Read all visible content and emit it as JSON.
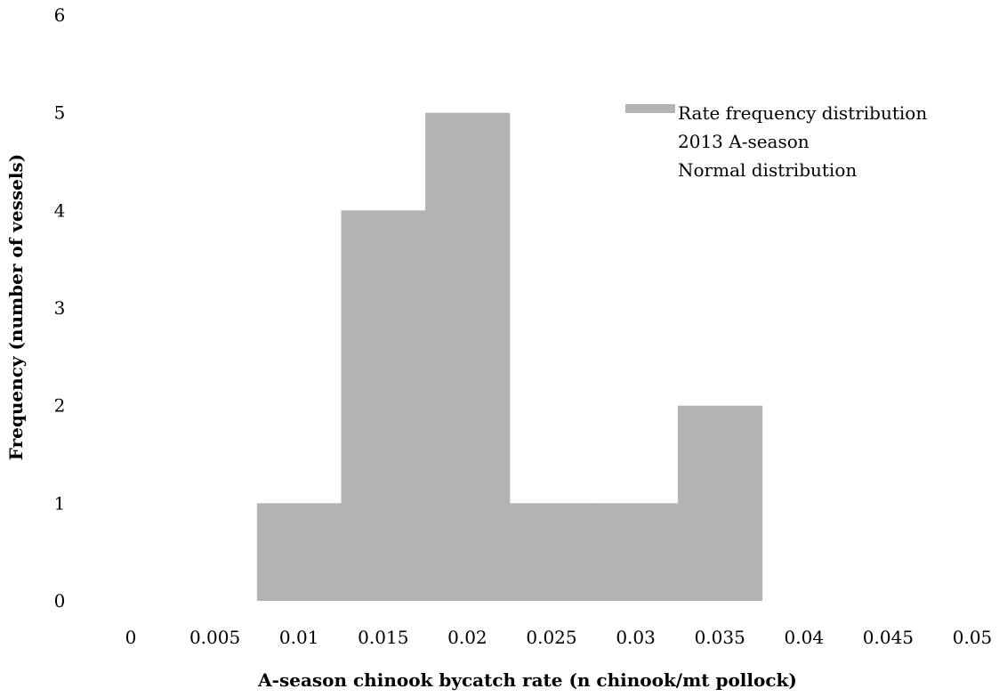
{
  "chart_data": {
    "type": "bar",
    "title": "",
    "xlabel": "A-season chinook bycatch rate (n chinook/mt pollock)",
    "ylabel": "Frequency (number of vessels)",
    "xlim": [
      0,
      0.05
    ],
    "ylim": [
      0,
      6
    ],
    "x_ticks": [
      "0",
      "0.005",
      "0.01",
      "0.015",
      "0.02",
      "0.025",
      "0.03",
      "0.035",
      "0.04",
      "0.045",
      "0.05"
    ],
    "y_ticks": [
      "0",
      "1",
      "2",
      "3",
      "4",
      "5",
      "6"
    ],
    "bin_width": 0.005,
    "bins": [
      {
        "x": 0.01,
        "count": 1
      },
      {
        "x": 0.015,
        "count": 4
      },
      {
        "x": 0.02,
        "count": 5
      },
      {
        "x": 0.025,
        "count": 1
      },
      {
        "x": 0.03,
        "count": 1
      },
      {
        "x": 0.035,
        "count": 2
      }
    ],
    "series": [
      {
        "name": "Rate frequency distribution",
        "color": "#b3b3b3"
      }
    ],
    "legend": {
      "position": "top-right",
      "entries": [
        "Rate frequency distribution",
        "2013 A-season",
        "Normal distribution"
      ]
    },
    "grid": false
  }
}
